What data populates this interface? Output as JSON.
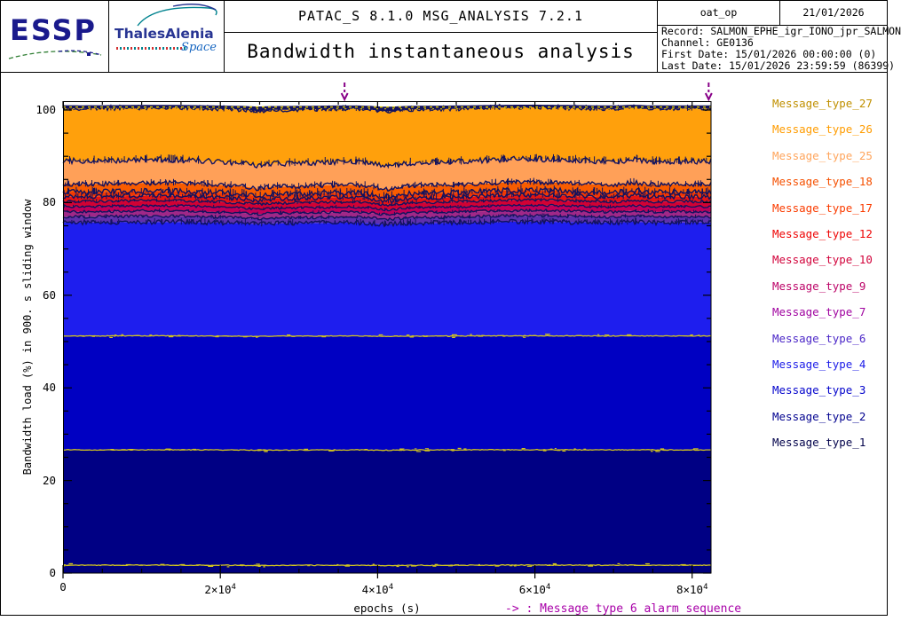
{
  "header": {
    "logo_essp": "ESSP",
    "logo_thales_line1": "ThalesAlenia",
    "logo_thales_line2": "Space",
    "app_line": "PATAC_S  8.1.0  MSG_ANALYSIS  7.2.1",
    "title": "Bandwidth instantaneous analysis",
    "info": {
      "run_label": "oat_op",
      "run_date": "21/01/2026",
      "record": "Record: SALMON_EPHE_igr_IONO_jpr_SALMON",
      "channel": "Channel: GE0136",
      "first_date": "First Date: 15/01/2026 00:00:00 (0)",
      "last_date": "Last Date: 15/01/2026 23:59:59 (86399)"
    }
  },
  "chart_data": {
    "type": "area",
    "stacked": true,
    "title": "Bandwidth instantaneous analysis",
    "xlabel": "epochs (s)",
    "ylabel": "Bandwidth load (%) in 900. s sliding window",
    "xlim": [
      0,
      82400
    ],
    "ylim": [
      0,
      102
    ],
    "x_ticks": [
      {
        "value": 0,
        "base": "0",
        "sup": ""
      },
      {
        "value": 20000,
        "base": "2×10",
        "sup": "4"
      },
      {
        "value": 40000,
        "base": "4×10",
        "sup": "4"
      },
      {
        "value": 60000,
        "base": "6×10",
        "sup": "4"
      },
      {
        "value": 80000,
        "base": "8×10",
        "sup": "4"
      }
    ],
    "x_minor_step": 5000,
    "y_major_ticks": [
      0,
      20,
      40,
      60,
      80,
      100
    ],
    "y_minor_step": 5,
    "grid": false,
    "legend_position": "right-outside",
    "boundary_color": "#12125e",
    "separator_color": "#d2c41e",
    "dash_color": "#d8c400",
    "arrow_color": "#880088",
    "alarm_markers_x": [
      35800,
      82100
    ],
    "alarm_note": "-> : Message type  6 alarm sequence",
    "layers": [
      {
        "name": "Message_type_1",
        "fill": "#00007e",
        "top": 1.7,
        "line": "yellow",
        "wave": 0.05
      },
      {
        "name": "Message_type_2",
        "fill": "#000084",
        "top": 26.6,
        "line": "yellow",
        "wave": 0.06
      },
      {
        "name": "Message_type_3",
        "fill": "#0000c2",
        "top": 51.2,
        "line": "yellow",
        "wave": 0.08
      },
      {
        "name": "Message_type_4",
        "fill": "#1e1eee",
        "top": 75.7,
        "line": "navy",
        "rough": 0.5,
        "wave": 0.3
      },
      {
        "name": "Message_type_6",
        "fill": "#6030ac",
        "top": 76.9,
        "line": "navy",
        "rough": 0.3,
        "wave": 0.45
      },
      {
        "name": "Message_type_7",
        "fill": "#a02888",
        "top": 78.0,
        "line": "navy",
        "rough": 0.28,
        "wave": 0.5
      },
      {
        "name": "Message_type_9",
        "fill": "#c00058",
        "top": 79.1,
        "line": "navy",
        "rough": 0.25,
        "wave": 0.55
      },
      {
        "name": "Message_type_10",
        "fill": "#d20134",
        "top": 80.2,
        "line": "navy",
        "rough": 0.3,
        "wave": 0.6
      },
      {
        "name": "Message_type_12",
        "fill": "#e41414",
        "top": 81.2,
        "line": "navy",
        "rough": 0.5,
        "wave": 0.7
      },
      {
        "name": "Message_type_17",
        "fill": "#f23802",
        "top": 82.2,
        "line": "navy",
        "rough": 0.6,
        "wave": 0.8
      },
      {
        "name": "Message_type_18",
        "fill": "#f85c00",
        "top": 83.9,
        "line": "navy",
        "rough": 0.5,
        "wave": 0.85
      },
      {
        "name": "Message_type_25",
        "fill": "#ffa058",
        "top": 88.9,
        "line": "navy",
        "rough": 0.6,
        "wave": 0.9
      },
      {
        "name": "Message_type_26",
        "fill": "#ffa00c",
        "top": 100.3,
        "line": "navy",
        "rough": 0.45,
        "wave": 0.5
      },
      {
        "name": "Message_type_27",
        "fill": "#12125e",
        "top": 101.0,
        "line": "yellow-dash",
        "wave": 0.25
      }
    ]
  },
  "legend": {
    "items": [
      {
        "label": "Message_type_27",
        "color": "#c09000"
      },
      {
        "label": "Message_type_26",
        "color": "#ff9c00"
      },
      {
        "label": "Message_type_25",
        "color": "#ffa55c"
      },
      {
        "label": "Message_type_18",
        "color": "#f55000"
      },
      {
        "label": "Message_type_17",
        "color": "#fa3c00"
      },
      {
        "label": "Message_type_12",
        "color": "#ee0404"
      },
      {
        "label": "Message_type_10",
        "color": "#d2043c"
      },
      {
        "label": "Message_type_9",
        "color": "#bc0468"
      },
      {
        "label": "Message_type_7",
        "color": "#a004a0"
      },
      {
        "label": "Message_type_6",
        "color": "#4c28c8"
      },
      {
        "label": "Message_type_4",
        "color": "#1c1ce8"
      },
      {
        "label": "Message_type_3",
        "color": "#0404cc"
      },
      {
        "label": "Message_type_2",
        "color": "#040490"
      },
      {
        "label": "Message_type_1",
        "color": "#04044c"
      }
    ]
  }
}
